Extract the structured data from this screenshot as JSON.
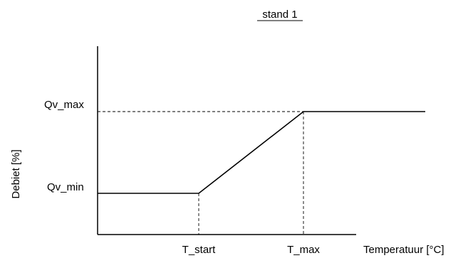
{
  "diagram": {
    "title": "stand 1",
    "ylabel": "Debiet [%]",
    "xlabel": "Temperatuur [°C]",
    "y_levels": {
      "qv_max": "Qv_max",
      "qv_min": "Qv_min"
    },
    "x_points": {
      "t_start": "T_start",
      "t_max": "T_max"
    }
  }
}
